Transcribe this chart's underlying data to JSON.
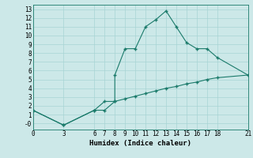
{
  "xlabel": "Humidex (Indice chaleur)",
  "x_ticks": [
    0,
    3,
    6,
    7,
    8,
    9,
    10,
    11,
    12,
    13,
    14,
    15,
    16,
    17,
    18,
    21
  ],
  "ylim": [
    -0.7,
    13.5
  ],
  "xlim": [
    0,
    21
  ],
  "line1_x": [
    0,
    3,
    6,
    7,
    8,
    8,
    9,
    10,
    11,
    12,
    13,
    14,
    15,
    16,
    17,
    18,
    21
  ],
  "line1_y": [
    1.5,
    -0.2,
    1.5,
    2.5,
    2.5,
    5.5,
    8.5,
    8.5,
    11.0,
    11.8,
    12.8,
    11.0,
    9.2,
    8.5,
    8.5,
    7.5,
    5.5
  ],
  "line2_x": [
    0,
    3,
    6,
    7,
    8,
    9,
    10,
    11,
    12,
    13,
    14,
    15,
    16,
    17,
    18,
    21
  ],
  "line2_y": [
    1.5,
    -0.2,
    1.5,
    1.5,
    2.5,
    2.8,
    3.1,
    3.4,
    3.7,
    4.0,
    4.2,
    4.5,
    4.7,
    5.0,
    5.2,
    5.5
  ],
  "line_color": "#1a7a6a",
  "bg_color": "#cce8e8",
  "grid_color": "#a8d4d4",
  "y_ticks": [
    0,
    1,
    2,
    3,
    4,
    5,
    6,
    7,
    8,
    9,
    10,
    11,
    12,
    13
  ],
  "y_tick_labels": [
    "-0",
    "1",
    "2",
    "3",
    "4",
    "5",
    "6",
    "7",
    "8",
    "9",
    "10",
    "11",
    "12",
    "13"
  ],
  "marker": "+",
  "markersize": 3,
  "linewidth": 0.8,
  "fontsize_ticks": 5.5,
  "fontsize_xlabel": 6.5
}
